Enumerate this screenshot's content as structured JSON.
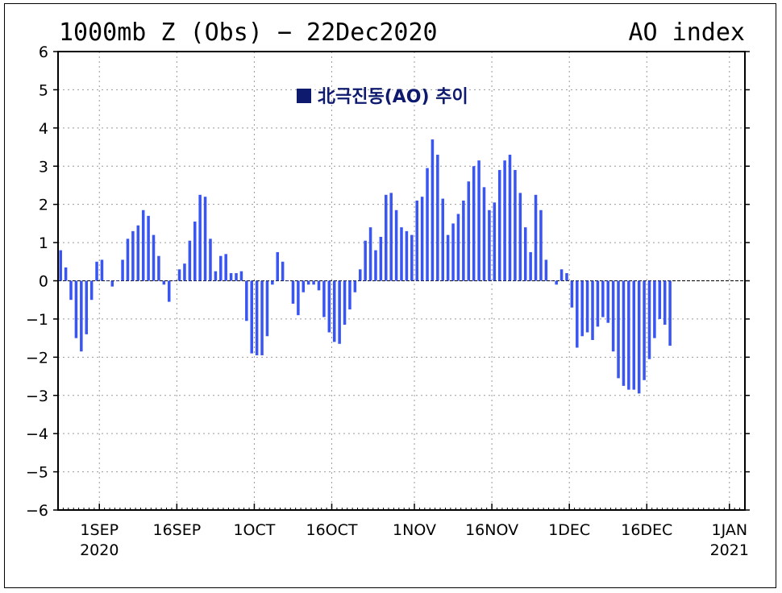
{
  "chart_data": {
    "type": "bar",
    "title": "1000mb Z (Obs) − 22Dec2020",
    "title_right": "AO index",
    "legend": {
      "label": "北극진동(AO) 추이",
      "position": "top-center",
      "color": "#0d1a6e"
    },
    "xlabel": "",
    "ylabel": "",
    "ylim": [
      -6,
      6
    ],
    "yticks": [
      "6",
      "5",
      "4",
      "3",
      "2",
      "1",
      "0",
      "−1",
      "−2",
      "−3",
      "−4",
      "−5",
      "−6"
    ],
    "ytick_values": [
      6,
      5,
      4,
      3,
      2,
      1,
      0,
      -1,
      -2,
      -3,
      -4,
      -5,
      -6
    ],
    "xlim": [
      "2020-08-24",
      "2021-01-04"
    ],
    "xticks": [
      {
        "date": "2020-09-01",
        "label": "1SEP",
        "sub": "2020"
      },
      {
        "date": "2020-09-16",
        "label": "16SEP",
        "sub": ""
      },
      {
        "date": "2020-10-01",
        "label": "1OCT",
        "sub": ""
      },
      {
        "date": "2020-10-16",
        "label": "16OCT",
        "sub": ""
      },
      {
        "date": "2020-11-01",
        "label": "1NOV",
        "sub": ""
      },
      {
        "date": "2020-11-16",
        "label": "16NOV",
        "sub": ""
      },
      {
        "date": "2020-12-01",
        "label": "1DEC",
        "sub": ""
      },
      {
        "date": "2020-12-16",
        "label": "16DEC",
        "sub": ""
      },
      {
        "date": "2021-01-01",
        "label": "1JAN",
        "sub": "2021"
      }
    ],
    "grid": true,
    "bar_color": "#3a56f2",
    "series": [
      {
        "start_date": "2020-08-24",
        "values": [
          0.8,
          0.35,
          -0.5,
          -1.5,
          -1.85,
          -1.4,
          -0.5,
          0.5,
          0.55,
          0.0,
          -0.15,
          0.0,
          0.55,
          1.1,
          1.3,
          1.45,
          1.85,
          1.7,
          1.2,
          0.65,
          -0.1,
          -0.55,
          0.0,
          0.3,
          0.45,
          1.05,
          1.55,
          2.25,
          2.2,
          1.1,
          0.25,
          0.65,
          0.7,
          0.2,
          0.2,
          0.25,
          -1.05,
          -1.9,
          -1.95,
          -1.95,
          -1.45,
          -0.1,
          0.75,
          0.5,
          0.0,
          -0.6,
          -0.9,
          -0.3,
          -0.1,
          -0.1,
          -0.25,
          -0.95,
          -1.35,
          -1.6,
          -1.65,
          -1.15,
          -0.75,
          -0.3,
          0.3,
          1.05,
          1.4,
          0.8,
          1.15,
          2.25,
          2.3,
          1.85,
          1.4,
          1.3,
          1.2,
          2.1,
          2.2,
          2.95,
          3.7,
          3.3,
          2.15,
          1.2,
          1.5,
          1.75,
          2.1,
          2.6,
          3.0,
          3.15,
          2.45,
          1.85,
          2.05,
          2.9,
          3.15,
          3.3,
          2.9,
          2.3,
          1.4,
          0.75,
          2.25,
          1.85,
          0.55,
          0.0,
          -0.1,
          0.3,
          0.2,
          -0.7,
          -1.75,
          -1.45,
          -1.35,
          -1.55,
          -1.2,
          -0.95,
          -1.1,
          -1.85,
          -2.55,
          -2.75,
          -2.85,
          -2.85,
          -2.95,
          -2.6,
          -2.05,
          -1.5,
          -1.0,
          -1.15,
          -1.7
        ]
      }
    ]
  }
}
